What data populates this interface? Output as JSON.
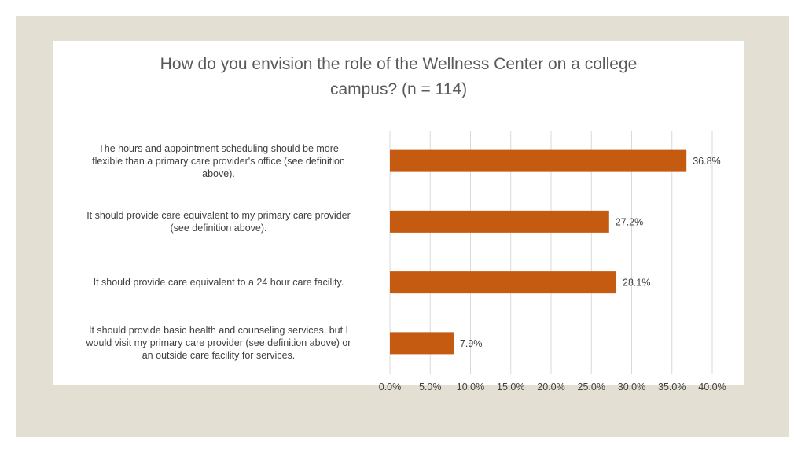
{
  "chart_data": {
    "type": "bar",
    "orientation": "horizontal",
    "title_lines": [
      "How do you envision the role of the Wellness Center on a college",
      "campus? (n = 114)"
    ],
    "categories": [
      [
        "The hours and appointment scheduling should be more",
        "flexible than a primary care provider's office (see definition",
        "above)."
      ],
      [
        "It should provide care equivalent to my primary care provider",
        "(see definition above)."
      ],
      [
        "It should provide care equivalent to a 24 hour care facility."
      ],
      [
        "It should provide basic health and counseling services, but I",
        "would visit my primary care provider (see definition above) or",
        "an outside care facility for services."
      ]
    ],
    "values": [
      36.8,
      27.2,
      28.1,
      7.9
    ],
    "data_labels": [
      "36.8%",
      "27.2%",
      "28.1%",
      "7.9%"
    ],
    "xlim": [
      0,
      40
    ],
    "ticks": [
      0,
      5,
      10,
      15,
      20,
      25,
      30,
      35,
      40
    ],
    "tick_labels": [
      "0.0%",
      "5.0%",
      "10.0%",
      "15.0%",
      "20.0%",
      "25.0%",
      "30.0%",
      "35.0%",
      "40.0%"
    ],
    "grid": true,
    "legend": "none",
    "bar_color": "#c55a11",
    "gridline_color": "#d9d9d9"
  }
}
